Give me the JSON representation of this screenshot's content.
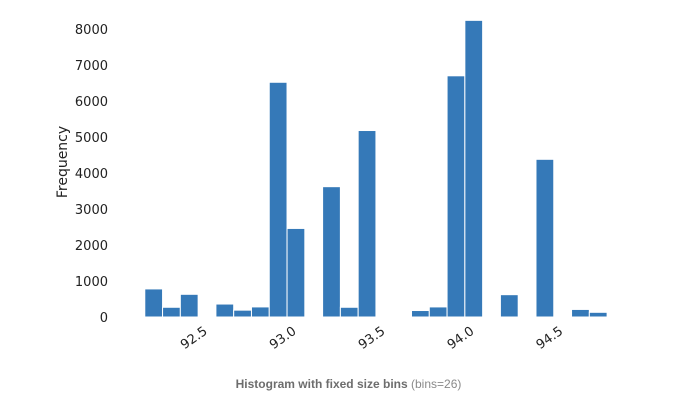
{
  "caption": {
    "main": "Histogram with fixed size bins",
    "sub": "(bins=26)"
  },
  "colors": {
    "bar": "#3579b8",
    "bar_edge": "#ffffff",
    "text": "#222222"
  },
  "chart_data": {
    "type": "bar",
    "title": "",
    "xlabel": "",
    "ylabel": "Frequency",
    "bin_count": 26,
    "x_range": [
      92.1,
      94.85
    ],
    "ylim": [
      0,
      8000
    ],
    "x_ticks": [
      92.5,
      93.0,
      93.5,
      94.0,
      94.5
    ],
    "x_tick_labels": [
      "92.5",
      "93.0",
      "93.5",
      "94.0",
      "94.5"
    ],
    "y_ticks": [
      0,
      1000,
      2000,
      3000,
      4000,
      5000,
      6000,
      7000,
      8000
    ],
    "y_tick_labels": [
      "0",
      "1000",
      "2000",
      "3000",
      "4000",
      "5000",
      "6000",
      "7000",
      "8000"
    ],
    "grid": false,
    "bins": [
      {
        "x0": 92.2,
        "x1": 92.3,
        "value": 780
      },
      {
        "x0": 92.3,
        "x1": 92.4,
        "value": 270
      },
      {
        "x0": 92.4,
        "x1": 92.5,
        "value": 630
      },
      {
        "x0": 92.5,
        "x1": 92.6,
        "value": 0
      },
      {
        "x0": 92.6,
        "x1": 92.7,
        "value": 360
      },
      {
        "x0": 92.7,
        "x1": 92.8,
        "value": 190
      },
      {
        "x0": 92.8,
        "x1": 92.9,
        "value": 280
      },
      {
        "x0": 92.9,
        "x1": 93.0,
        "value": 6520
      },
      {
        "x0": 93.0,
        "x1": 93.1,
        "value": 2460
      },
      {
        "x0": 93.1,
        "x1": 93.2,
        "value": 0
      },
      {
        "x0": 93.2,
        "x1": 93.3,
        "value": 3620
      },
      {
        "x0": 93.3,
        "x1": 93.4,
        "value": 270
      },
      {
        "x0": 93.4,
        "x1": 93.5,
        "value": 5180
      },
      {
        "x0": 93.5,
        "x1": 93.6,
        "value": 0
      },
      {
        "x0": 93.6,
        "x1": 93.7,
        "value": 0
      },
      {
        "x0": 93.7,
        "x1": 93.8,
        "value": 180
      },
      {
        "x0": 93.8,
        "x1": 93.9,
        "value": 280
      },
      {
        "x0": 93.9,
        "x1": 94.0,
        "value": 6700
      },
      {
        "x0": 94.0,
        "x1": 94.1,
        "value": 8240
      },
      {
        "x0": 94.1,
        "x1": 94.2,
        "value": 0
      },
      {
        "x0": 94.2,
        "x1": 94.3,
        "value": 620
      },
      {
        "x0": 94.3,
        "x1": 94.4,
        "value": 0
      },
      {
        "x0": 94.4,
        "x1": 94.5,
        "value": 4380
      },
      {
        "x0": 94.5,
        "x1": 94.6,
        "value": 0
      },
      {
        "x0": 94.6,
        "x1": 94.7,
        "value": 210
      },
      {
        "x0": 94.7,
        "x1": 94.8,
        "value": 130
      }
    ]
  }
}
